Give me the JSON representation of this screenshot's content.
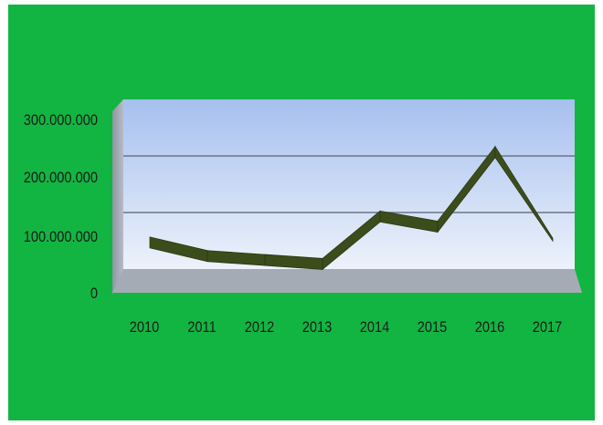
{
  "chart_data": {
    "type": "line",
    "style": "3d-ribbon",
    "categories": [
      "2010",
      "2011",
      "2012",
      "2013",
      "2014",
      "2015",
      "2016",
      "2017"
    ],
    "series": [
      {
        "values": [
          47000000,
          23000000,
          16000000,
          9000000,
          93000000,
          75000000,
          207000000,
          52000000
        ]
      }
    ],
    "y_ticks": [
      "0",
      "100.000.000",
      "200.000.000",
      "300.000.000"
    ],
    "ylim": [
      0,
      300000000
    ],
    "grid": true,
    "legend": "none",
    "colors": {
      "background": "#12b542",
      "line": "#3c4d1c",
      "plot_wall_top": "#a6c0ee",
      "plot_wall_bottom": "#edf2fb",
      "floor": "#a5abb5",
      "gridline": "#6b7487"
    }
  }
}
